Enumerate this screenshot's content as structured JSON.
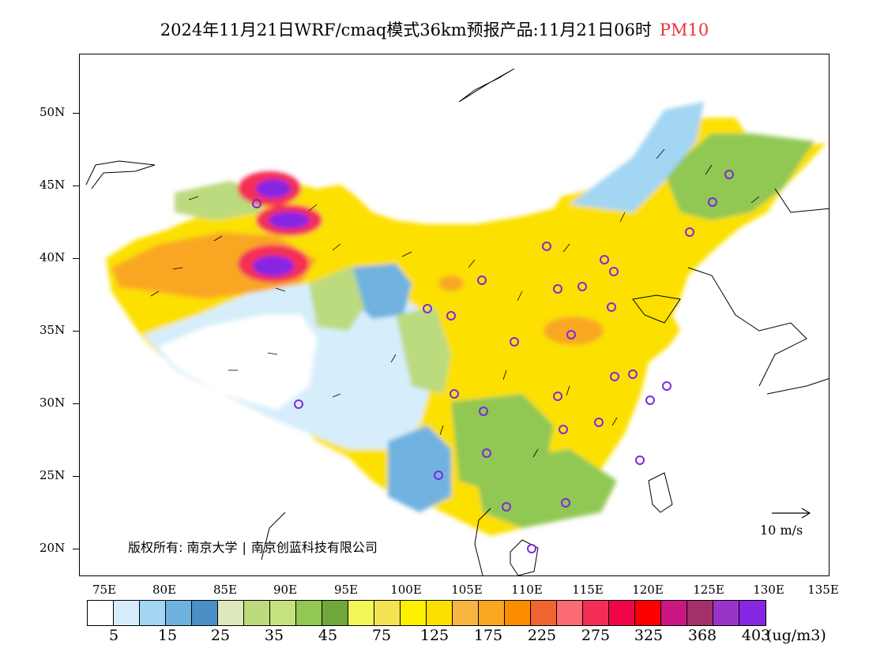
{
  "title": {
    "text": "2024年11月21日WRF/cmaq模式36km预报产品:11月21日06时",
    "variable": "PM10"
  },
  "map": {
    "lat_labels": [
      "50N",
      "45N",
      "40N",
      "35N",
      "30N",
      "25N",
      "20N"
    ],
    "lon_labels": [
      "75E",
      "80E",
      "85E",
      "90E",
      "95E",
      "100E",
      "105E",
      "110E",
      "115E",
      "120E",
      "125E",
      "130E",
      "135E"
    ],
    "extent": {
      "lon_min": 73,
      "lon_max": 135,
      "lat_min": 18,
      "lat_max": 54
    },
    "copyright_owner": "版权所有:",
    "copyright_org1": "南京大学",
    "copyright_org2": "南京创蓝科技有限公司",
    "wind_reference": "10 m/s",
    "station_marker_color": "#7b2bd9"
  },
  "colorbar": {
    "colors": [
      "#ffffff",
      "#d6eefb",
      "#a2d6f3",
      "#6fb2e0",
      "#4a8fc6",
      "#dde9bb",
      "#bcda7e",
      "#c6e27e",
      "#91c752",
      "#6ea83c",
      "#f4f65a",
      "#f4e452",
      "#fdf000",
      "#fce000",
      "#f7b542",
      "#f9a723",
      "#fb8c00",
      "#f06430",
      "#fb6b73",
      "#f42d56",
      "#ee0649",
      "#fb0000",
      "#ca1683",
      "#a2306b",
      "#9a34c9",
      "#8726e2"
    ],
    "labels": [
      "5",
      "15",
      "25",
      "35",
      "45",
      "75",
      "125",
      "175",
      "225",
      "275",
      "325",
      "368",
      "403"
    ],
    "unit": "(ug/m3)"
  }
}
